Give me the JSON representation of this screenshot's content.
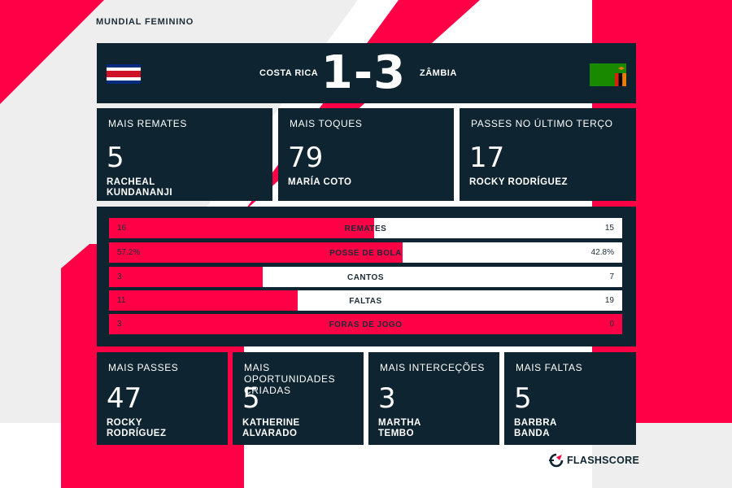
{
  "competition": "MUNDIAL FEMININO",
  "match": {
    "home_team": "COSTA RICA",
    "away_team": "ZÂMBIA",
    "score": "1-3",
    "home_flag": "costa-rica-flag",
    "away_flag": "zambia-flag"
  },
  "top_leaders": [
    {
      "label": "MAIS REMATES",
      "value": "5",
      "player_line1": "RACHEAL",
      "player_line2": "KUNDANANJI"
    },
    {
      "label": "MAIS TOQUES",
      "value": "79",
      "player_line1": "MARÍA COTO",
      "player_line2": ""
    },
    {
      "label": "PASSES NO ÚLTIMO TERÇO",
      "value": "17",
      "player_line1": "ROCKY RODRÍGUEZ",
      "player_line2": ""
    }
  ],
  "team_stats": [
    {
      "name": "REMATES",
      "home": "16",
      "away": "15",
      "home_share": 0.516
    },
    {
      "name": "POSSE DE BOLA",
      "home": "57.2%",
      "away": "42.8%",
      "home_share": 0.572
    },
    {
      "name": "CANTOS",
      "home": "3",
      "away": "7",
      "home_share": 0.3
    },
    {
      "name": "FALTAS",
      "home": "11",
      "away": "19",
      "home_share": 0.367
    },
    {
      "name": "FORAS DE JOGO",
      "home": "3",
      "away": "0",
      "home_share": 1.0
    }
  ],
  "bottom_leaders": [
    {
      "label_line1": "MAIS PASSES",
      "label_line2": "",
      "value": "47",
      "player_line1": "ROCKY",
      "player_line2": "RODRÍGUEZ"
    },
    {
      "label_line1": "MAIS OPORTUNIDADES",
      "label_line2": "CRIADAS",
      "value": "5",
      "player_line1": "KATHERINE",
      "player_line2": "ALVARADO"
    },
    {
      "label_line1": "MAIS INTERCEÇÕES",
      "label_line2": "",
      "value": "3",
      "player_line1": "MARTHA",
      "player_line2": "TEMBO"
    },
    {
      "label_line1": "MAIS FALTAS",
      "label_line2": "",
      "value": "5",
      "player_line1": "BARBRA",
      "player_line2": "BANDA"
    }
  ],
  "brand": {
    "name": "FLASHSCORE",
    "logo_icon": "flashscore-logo-icon"
  },
  "colors": {
    "navy": "#0e2430",
    "red": "#ff0046",
    "background": "#eeeeee"
  }
}
